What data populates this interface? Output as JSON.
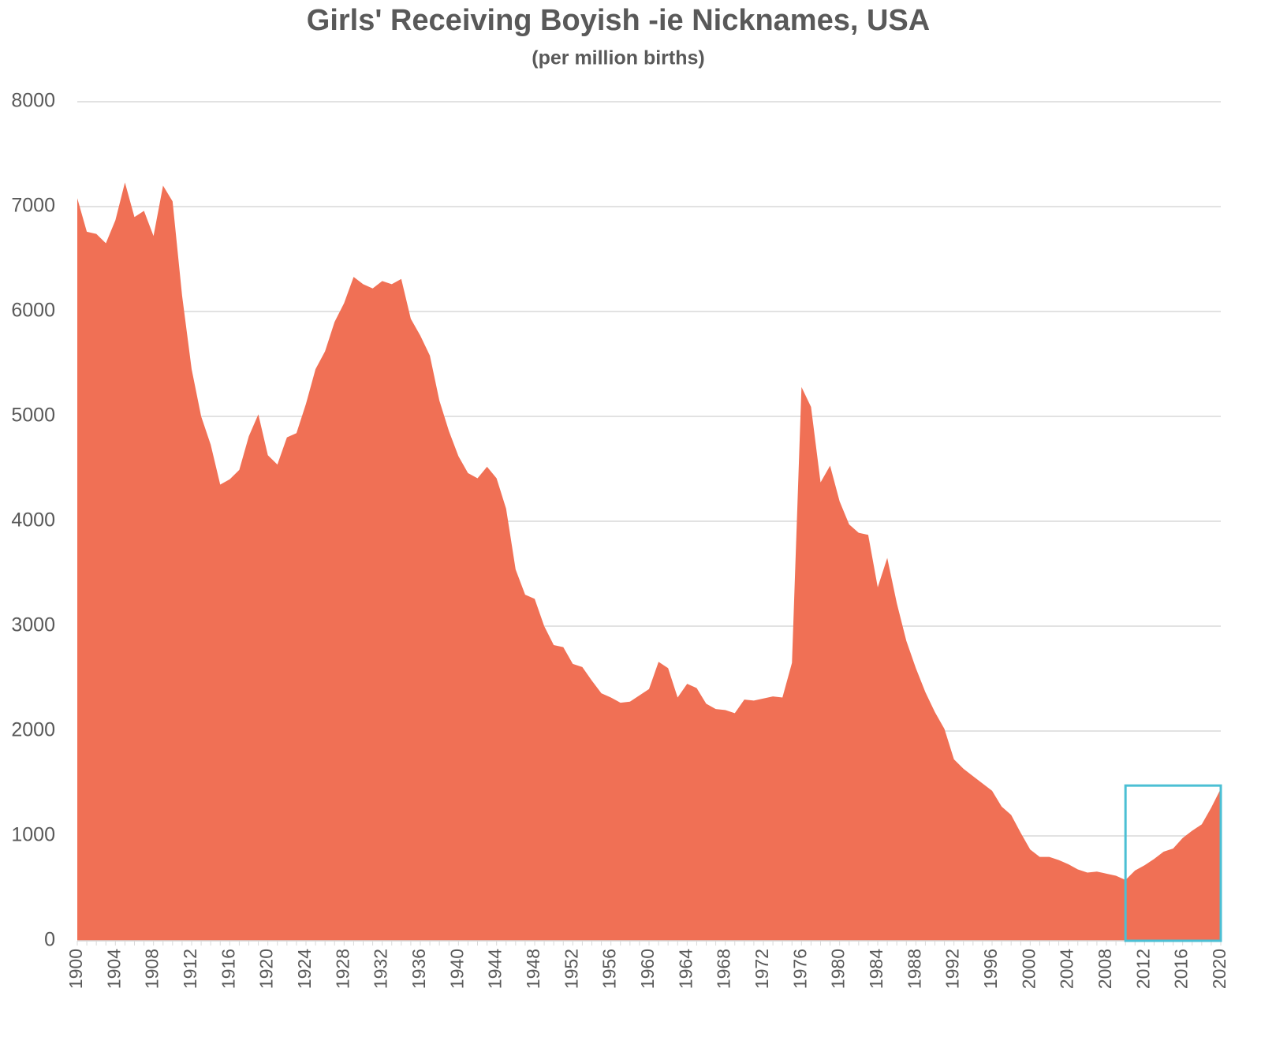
{
  "chart_data": {
    "type": "area",
    "title": "Girls' Receiving Boyish -ie Nicknames, USA",
    "subtitle": "(per million births)",
    "x": [
      1900,
      1901,
      1902,
      1903,
      1904,
      1905,
      1906,
      1907,
      1908,
      1909,
      1910,
      1911,
      1912,
      1913,
      1914,
      1915,
      1916,
      1917,
      1918,
      1919,
      1920,
      1921,
      1922,
      1923,
      1924,
      1925,
      1926,
      1927,
      1928,
      1929,
      1930,
      1931,
      1932,
      1933,
      1934,
      1935,
      1936,
      1937,
      1938,
      1939,
      1940,
      1941,
      1942,
      1943,
      1944,
      1945,
      1946,
      1947,
      1948,
      1949,
      1950,
      1951,
      1952,
      1953,
      1954,
      1955,
      1956,
      1957,
      1958,
      1959,
      1960,
      1961,
      1962,
      1963,
      1964,
      1965,
      1966,
      1967,
      1968,
      1969,
      1970,
      1971,
      1972,
      1973,
      1974,
      1975,
      1976,
      1977,
      1978,
      1979,
      1980,
      1981,
      1982,
      1983,
      1984,
      1985,
      1986,
      1987,
      1988,
      1989,
      1990,
      1991,
      1992,
      1993,
      1994,
      1995,
      1996,
      1997,
      1998,
      1999,
      2000,
      2001,
      2002,
      2003,
      2004,
      2005,
      2006,
      2007,
      2008,
      2009,
      2010,
      2011,
      2012,
      2013,
      2014,
      2015,
      2016,
      2017,
      2018,
      2019,
      2020
    ],
    "values": [
      7080,
      6760,
      6740,
      6650,
      6870,
      7230,
      6900,
      6960,
      6720,
      7200,
      7050,
      6150,
      5450,
      5000,
      4730,
      4350,
      4400,
      4490,
      4810,
      5020,
      4630,
      4540,
      4800,
      4840,
      5120,
      5450,
      5620,
      5900,
      6080,
      6330,
      6260,
      6220,
      6290,
      6260,
      6310,
      5930,
      5770,
      5580,
      5150,
      4860,
      4620,
      4460,
      4410,
      4520,
      4410,
      4120,
      3540,
      3300,
      3260,
      3000,
      2820,
      2800,
      2640,
      2610,
      2480,
      2360,
      2320,
      2270,
      2280,
      2340,
      2400,
      2660,
      2600,
      2320,
      2450,
      2410,
      2260,
      2210,
      2200,
      2170,
      2300,
      2290,
      2310,
      2330,
      2320,
      2650,
      5280,
      5090,
      4370,
      4530,
      4190,
      3970,
      3890,
      3870,
      3370,
      3650,
      3220,
      2860,
      2600,
      2370,
      2180,
      2020,
      1730,
      1640,
      1570,
      1500,
      1430,
      1280,
      1200,
      1030,
      870,
      800,
      800,
      770,
      730,
      680,
      650,
      660,
      640,
      620,
      580,
      670,
      720,
      780,
      850,
      880,
      980,
      1050,
      1110,
      1270,
      1450
    ],
    "color": "#f07055",
    "xlim": [
      1900,
      2020
    ],
    "xticks": [
      1900,
      1904,
      1908,
      1912,
      1916,
      1920,
      1924,
      1928,
      1932,
      1936,
      1940,
      1944,
      1948,
      1952,
      1956,
      1960,
      1964,
      1968,
      1972,
      1976,
      1980,
      1984,
      1988,
      1992,
      1996,
      2000,
      2004,
      2008,
      2012,
      2016,
      2020
    ],
    "ylim": [
      0,
      8000
    ],
    "yticks": [
      0,
      1000,
      2000,
      3000,
      4000,
      5000,
      6000,
      7000,
      8000
    ],
    "grid": true,
    "highlight": {
      "x": [
        2010,
        2020
      ],
      "y": [
        0,
        1480
      ],
      "color": "#4bbfd4"
    }
  }
}
